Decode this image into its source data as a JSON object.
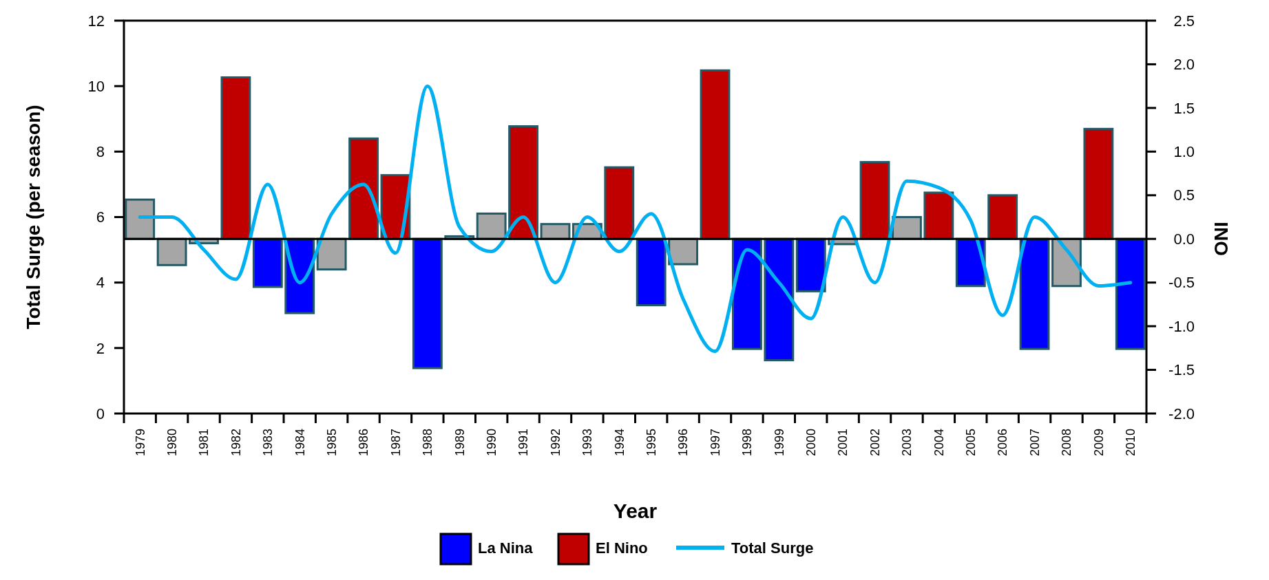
{
  "chart_data": {
    "type": "bar",
    "xlabel": "Year",
    "ylabel": "Total Surge (per season)",
    "y2label": "ONI",
    "categories": [
      "1979",
      "1980",
      "1981",
      "1982",
      "1983",
      "1984",
      "1985",
      "1986",
      "1987",
      "1988",
      "1989",
      "1990",
      "1991",
      "1992",
      "1993",
      "1994",
      "1995",
      "1996",
      "1997",
      "1998",
      "1999",
      "2000",
      "2001",
      "2002",
      "2003",
      "2004",
      "2005",
      "2006",
      "2007",
      "2008",
      "2009",
      "2010"
    ],
    "stacked": true,
    "legend": "bottom",
    "ylim": [
      0,
      12
    ],
    "yticks": [
      0,
      2,
      4,
      6,
      8,
      10,
      12
    ],
    "y2lim": [
      -2,
      2.5
    ],
    "y2ticks": [
      {
        "value": -2,
        "label": "-2.0"
      },
      {
        "value": -1.5,
        "label": "-1.5"
      },
      {
        "value": -1,
        "label": "-1.0"
      },
      {
        "value": -0.5,
        "label": "-0.5"
      },
      {
        "value": 0,
        "label": "0.0"
      },
      {
        "value": 0.5,
        "label": "0.5"
      },
      {
        "value": 1,
        "label": "1.0"
      },
      {
        "value": 1.5,
        "label": "1.5"
      },
      {
        "value": 2,
        "label": "2.0"
      },
      {
        "value": 2.5,
        "label": "2.5"
      }
    ],
    "series": [
      {
        "name": "La Nina",
        "axis": "y2",
        "color": "#0000ff",
        "values": [
          null,
          null,
          null,
          null,
          -0.55,
          -0.85,
          null,
          null,
          null,
          -1.48,
          null,
          null,
          null,
          null,
          null,
          null,
          -0.76,
          null,
          null,
          -1.26,
          -1.39,
          -0.6,
          null,
          null,
          null,
          null,
          -0.54,
          null,
          -1.26,
          null,
          null,
          -1.26
        ]
      },
      {
        "name": "El Nino",
        "axis": "y2",
        "color": "#c00000",
        "values": [
          null,
          null,
          null,
          1.85,
          null,
          null,
          null,
          1.15,
          0.73,
          null,
          null,
          null,
          1.29,
          null,
          null,
          0.82,
          null,
          null,
          1.93,
          null,
          null,
          null,
          null,
          0.88,
          null,
          0.53,
          null,
          0.5,
          null,
          null,
          1.26,
          null
        ]
      },
      {
        "axis": "y2",
        "color": "#a6a6a6",
        "values": [
          0.45,
          -0.3,
          -0.05,
          null,
          null,
          null,
          -0.35,
          null,
          null,
          null,
          0.03,
          0.29,
          null,
          0.17,
          0.17,
          null,
          null,
          -0.29,
          null,
          null,
          null,
          null,
          -0.06,
          null,
          0.25,
          null,
          null,
          null,
          null,
          -0.54,
          null,
          null
        ]
      },
      {
        "name": "Total Surge",
        "type": "line",
        "axis": "y",
        "color": "#00b0f0",
        "values": [
          6.0,
          6.0,
          5.0,
          4.1,
          7.0,
          4.0,
          6.1,
          7.0,
          4.9,
          10.0,
          5.7,
          4.95,
          6.0,
          4.0,
          6.0,
          4.95,
          6.1,
          3.5,
          1.9,
          5.0,
          4.0,
          2.9,
          6.0,
          4.0,
          7.1,
          6.9,
          5.9,
          3.0,
          6.0,
          5.0,
          3.9,
          4.0
        ]
      }
    ]
  }
}
